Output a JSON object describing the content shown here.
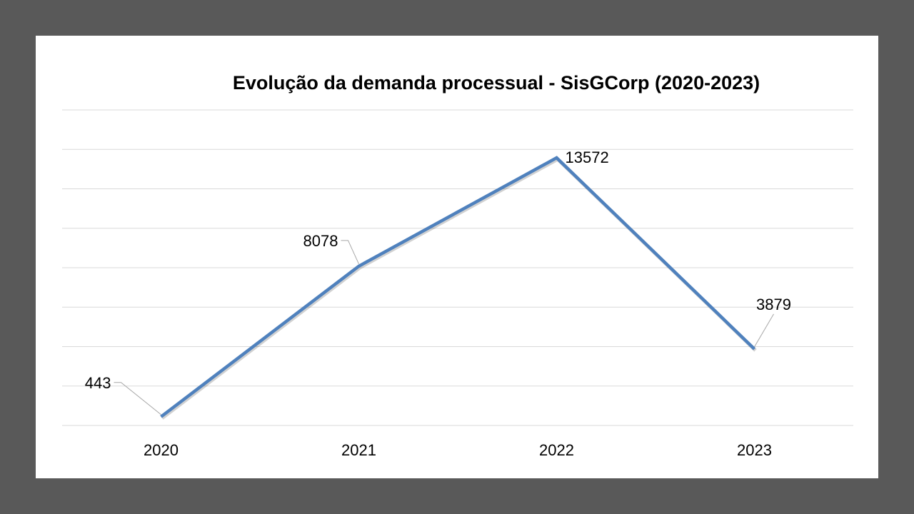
{
  "chart_data": {
    "type": "line",
    "title": "Evolução da demanda processual - SisGCorp (2020-2023)",
    "categories": [
      "2020",
      "2021",
      "2022",
      "2023"
    ],
    "series": [
      {
        "values": [
          443,
          8078,
          13572,
          3879
        ]
      }
    ],
    "data_labels": [
      "443",
      "8078",
      "13572",
      "3879"
    ],
    "ylim": [
      0,
      16000
    ],
    "y_gridline_step": 2000,
    "grid": true,
    "legend": "none",
    "line_color": "#4f81bd"
  }
}
